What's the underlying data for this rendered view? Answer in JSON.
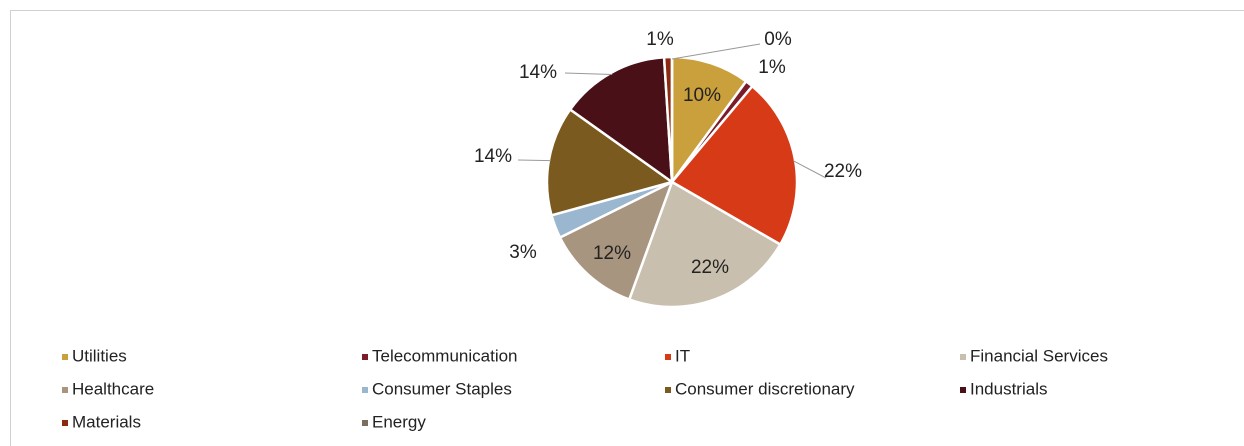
{
  "chart_data": {
    "type": "pie",
    "categories": [
      "Utilities",
      "Telecommunication",
      "IT",
      "Financial Services",
      "Healthcare",
      "Consumer Staples",
      "Consumer discretionary",
      "Industrials",
      "Materials",
      "Energy"
    ],
    "values": [
      10,
      1,
      22,
      22,
      12,
      3,
      14,
      14,
      1,
      0
    ],
    "value_labels": [
      "10%",
      "1%",
      "22%",
      "22%",
      "12%",
      "3%",
      "14%",
      "14%",
      "1%",
      "0%"
    ],
    "colors": [
      "#c9a03c",
      "#7b1c2a",
      "#d63a17",
      "#c9bfae",
      "#a89580",
      "#9bb7d0",
      "#7a5a1e",
      "#4a1018",
      "#8b2a10",
      "#7a6e5e"
    ],
    "legend": "bottom"
  }
}
